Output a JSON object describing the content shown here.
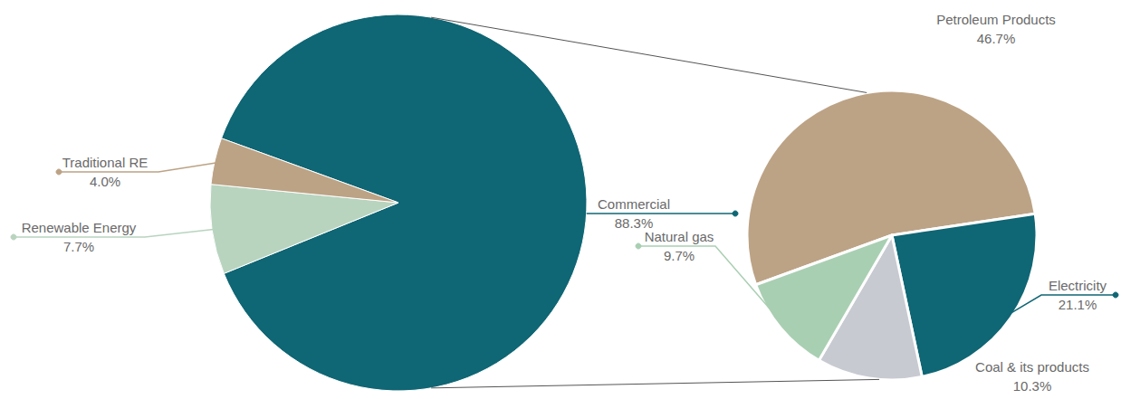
{
  "chart_data": [
    {
      "type": "pie",
      "categories": [
        "Commercial",
        "Renewable Energy",
        "Traditional RE"
      ],
      "values": [
        88.3,
        7.7,
        4.0
      ],
      "value_labels": [
        "88.3%",
        "7.7%",
        "4.0%"
      ],
      "colors": [
        "#0f6674",
        "#b8d4bf",
        "#bca385"
      ],
      "data_labels": true
    },
    {
      "type": "pie",
      "categories": [
        "Petroleum Products",
        "Electricity",
        "Coal & its products",
        "Natural gas"
      ],
      "values": [
        46.7,
        21.1,
        10.3,
        9.7
      ],
      "value_labels": [
        "46.7%",
        "21.1%",
        "10.3%",
        "9.7%"
      ],
      "colors": [
        "#bca385",
        "#0f6674",
        "#c8cad2",
        "#a9cfb2"
      ],
      "data_labels": true
    }
  ]
}
